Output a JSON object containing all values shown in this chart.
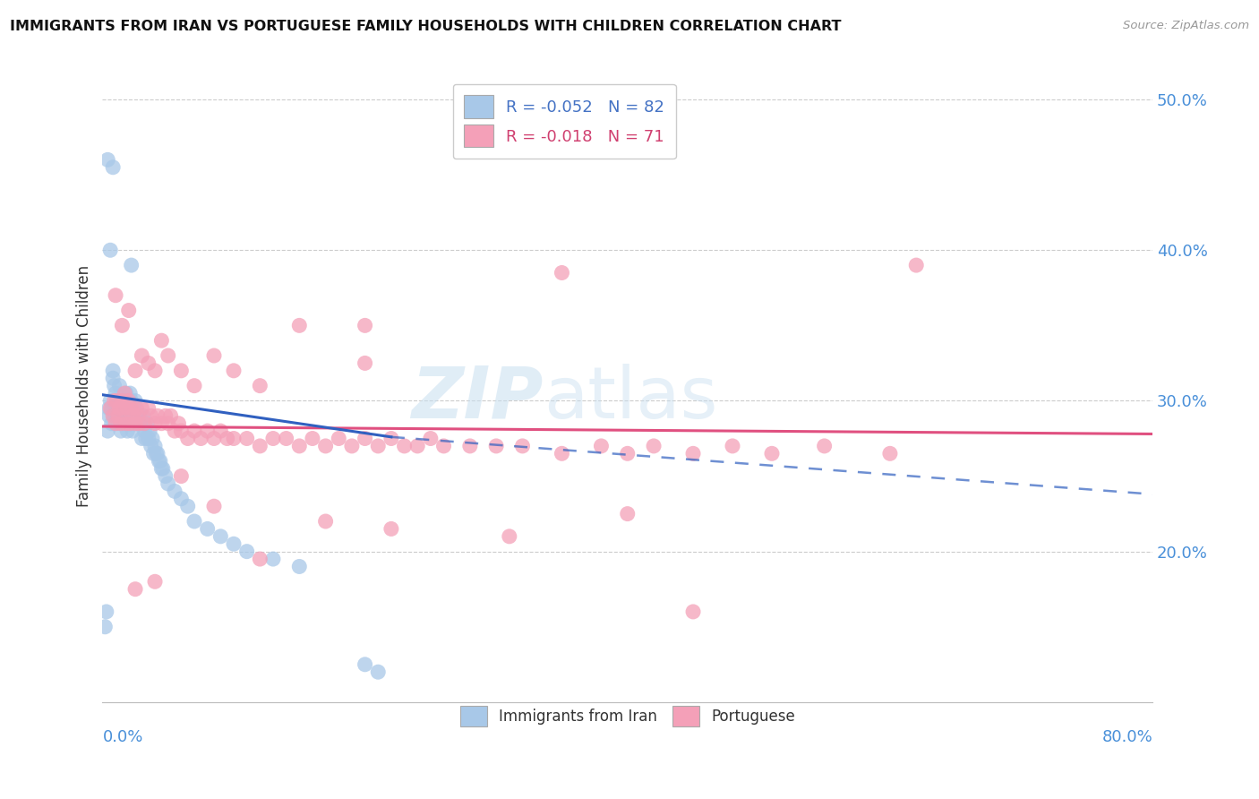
{
  "title": "IMMIGRANTS FROM IRAN VS PORTUGUESE FAMILY HOUSEHOLDS WITH CHILDREN CORRELATION CHART",
  "source": "Source: ZipAtlas.com",
  "ylabel": "Family Households with Children",
  "xlim": [
    0.0,
    0.8
  ],
  "ylim": [
    0.1,
    0.52
  ],
  "y_ticks": [
    0.2,
    0.3,
    0.4,
    0.5
  ],
  "y_tick_labels": [
    "20.0%",
    "30.0%",
    "40.0%",
    "50.0%"
  ],
  "legend_iran": "R = -0.052   N = 82",
  "legend_port": "R = -0.018   N = 71",
  "iran_color": "#a8c8e8",
  "port_color": "#f4a0b8",
  "iran_line_color": "#3060c0",
  "port_line_color": "#e05080",
  "watermark_zip": "ZIP",
  "watermark_atlas": "atlas",
  "iran_x": [
    0.002,
    0.003,
    0.004,
    0.005,
    0.005,
    0.006,
    0.007,
    0.007,
    0.008,
    0.008,
    0.009,
    0.009,
    0.01,
    0.01,
    0.011,
    0.011,
    0.012,
    0.012,
    0.013,
    0.013,
    0.014,
    0.014,
    0.015,
    0.015,
    0.016,
    0.016,
    0.017,
    0.017,
    0.018,
    0.018,
    0.019,
    0.019,
    0.02,
    0.02,
    0.021,
    0.021,
    0.022,
    0.022,
    0.023,
    0.023,
    0.024,
    0.025,
    0.025,
    0.026,
    0.027,
    0.028,
    0.029,
    0.03,
    0.031,
    0.032,
    0.033,
    0.034,
    0.035,
    0.036,
    0.037,
    0.038,
    0.039,
    0.04,
    0.041,
    0.042,
    0.043,
    0.044,
    0.045,
    0.046,
    0.048,
    0.05,
    0.055,
    0.06,
    0.065,
    0.07,
    0.08,
    0.09,
    0.1,
    0.11,
    0.13,
    0.15,
    0.004,
    0.006,
    0.022,
    0.2,
    0.008,
    0.21
  ],
  "iran_y": [
    0.15,
    0.16,
    0.28,
    0.295,
    0.29,
    0.3,
    0.295,
    0.285,
    0.32,
    0.315,
    0.31,
    0.29,
    0.305,
    0.295,
    0.3,
    0.29,
    0.295,
    0.285,
    0.31,
    0.3,
    0.295,
    0.28,
    0.3,
    0.29,
    0.295,
    0.285,
    0.3,
    0.29,
    0.305,
    0.295,
    0.29,
    0.28,
    0.295,
    0.285,
    0.305,
    0.295,
    0.3,
    0.285,
    0.295,
    0.28,
    0.295,
    0.3,
    0.285,
    0.29,
    0.285,
    0.29,
    0.285,
    0.275,
    0.29,
    0.28,
    0.275,
    0.285,
    0.275,
    0.28,
    0.27,
    0.275,
    0.265,
    0.27,
    0.265,
    0.265,
    0.26,
    0.26,
    0.255,
    0.255,
    0.25,
    0.245,
    0.24,
    0.235,
    0.23,
    0.22,
    0.215,
    0.21,
    0.205,
    0.2,
    0.195,
    0.19,
    0.46,
    0.4,
    0.39,
    0.125,
    0.455,
    0.12
  ],
  "port_x": [
    0.006,
    0.008,
    0.009,
    0.01,
    0.011,
    0.012,
    0.013,
    0.014,
    0.015,
    0.016,
    0.017,
    0.018,
    0.019,
    0.02,
    0.021,
    0.022,
    0.023,
    0.025,
    0.026,
    0.027,
    0.028,
    0.03,
    0.032,
    0.035,
    0.037,
    0.04,
    0.042,
    0.045,
    0.048,
    0.05,
    0.052,
    0.055,
    0.058,
    0.06,
    0.065,
    0.07,
    0.075,
    0.08,
    0.085,
    0.09,
    0.095,
    0.1,
    0.11,
    0.12,
    0.13,
    0.14,
    0.15,
    0.16,
    0.17,
    0.18,
    0.19,
    0.2,
    0.21,
    0.22,
    0.23,
    0.24,
    0.25,
    0.26,
    0.28,
    0.3,
    0.32,
    0.35,
    0.38,
    0.4,
    0.42,
    0.45,
    0.48,
    0.51,
    0.55,
    0.6,
    0.62
  ],
  "port_y": [
    0.295,
    0.29,
    0.3,
    0.285,
    0.3,
    0.29,
    0.295,
    0.285,
    0.3,
    0.295,
    0.305,
    0.285,
    0.295,
    0.3,
    0.285,
    0.295,
    0.29,
    0.285,
    0.295,
    0.29,
    0.285,
    0.295,
    0.285,
    0.295,
    0.29,
    0.285,
    0.29,
    0.285,
    0.29,
    0.285,
    0.29,
    0.28,
    0.285,
    0.28,
    0.275,
    0.28,
    0.275,
    0.28,
    0.275,
    0.28,
    0.275,
    0.275,
    0.275,
    0.27,
    0.275,
    0.275,
    0.27,
    0.275,
    0.27,
    0.275,
    0.27,
    0.275,
    0.27,
    0.275,
    0.27,
    0.27,
    0.275,
    0.27,
    0.27,
    0.27,
    0.27,
    0.265,
    0.27,
    0.265,
    0.27,
    0.265,
    0.27,
    0.265,
    0.27,
    0.265,
    0.39
  ],
  "port_outliers_x": [
    0.01,
    0.015,
    0.02,
    0.025,
    0.03,
    0.035,
    0.04,
    0.045,
    0.05,
    0.06,
    0.07,
    0.085,
    0.1,
    0.12,
    0.15,
    0.2,
    0.35,
    0.2,
    0.025,
    0.04,
    0.06,
    0.085,
    0.12,
    0.17,
    0.22,
    0.31,
    0.4,
    0.45
  ],
  "port_outliers_y": [
    0.37,
    0.35,
    0.36,
    0.32,
    0.33,
    0.325,
    0.32,
    0.34,
    0.33,
    0.32,
    0.31,
    0.33,
    0.32,
    0.31,
    0.35,
    0.35,
    0.385,
    0.325,
    0.175,
    0.18,
    0.25,
    0.23,
    0.195,
    0.22,
    0.215,
    0.21,
    0.225,
    0.16
  ]
}
